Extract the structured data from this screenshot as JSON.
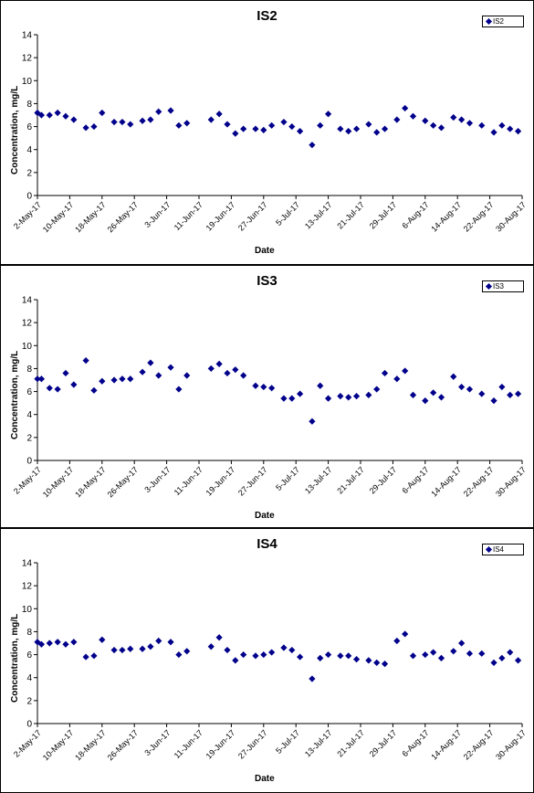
{
  "chart_data": [
    {
      "type": "scatter",
      "title": "IS2",
      "xlabel": "Date",
      "ylabel": "Concentration, mg/L",
      "ylim": [
        0,
        14
      ],
      "yticks": [
        0,
        2,
        4,
        6,
        8,
        10,
        12,
        14
      ],
      "xticks": [
        "2-May-17",
        "10-May-17",
        "18-May-17",
        "26-May-17",
        "3-Jun-17",
        "11-Jun-17",
        "19-Jun-17",
        "27-Jun-17",
        "5-Jul-17",
        "13-Jul-17",
        "21-Jul-17",
        "29-Jul-17",
        "6-Aug-17",
        "14-Aug-17",
        "22-Aug-17",
        "30-Aug-17"
      ],
      "legend": {
        "position": "top-right",
        "entries": [
          "IS2"
        ]
      },
      "grid": false,
      "series": [
        {
          "name": "IS2",
          "color": "#00008b",
          "points": [
            [
              "2-May-17",
              7.2
            ],
            [
              "3-May-17",
              7.0
            ],
            [
              "5-May-17",
              7.0
            ],
            [
              "7-May-17",
              7.2
            ],
            [
              "9-May-17",
              6.9
            ],
            [
              "11-May-17",
              6.6
            ],
            [
              "14-May-17",
              5.9
            ],
            [
              "16-May-17",
              6.0
            ],
            [
              "18-May-17",
              7.2
            ],
            [
              "21-May-17",
              6.4
            ],
            [
              "23-May-17",
              6.4
            ],
            [
              "25-May-17",
              6.2
            ],
            [
              "28-May-17",
              6.5
            ],
            [
              "30-May-17",
              6.6
            ],
            [
              "1-Jun-17",
              7.3
            ],
            [
              "4-Jun-17",
              7.4
            ],
            [
              "6-Jun-17",
              6.1
            ],
            [
              "8-Jun-17",
              6.3
            ],
            [
              "14-Jun-17",
              6.6
            ],
            [
              "16-Jun-17",
              7.1
            ],
            [
              "18-Jun-17",
              6.2
            ],
            [
              "20-Jun-17",
              5.4
            ],
            [
              "22-Jun-17",
              5.8
            ],
            [
              "25-Jun-17",
              5.8
            ],
            [
              "27-Jun-17",
              5.7
            ],
            [
              "29-Jun-17",
              6.1
            ],
            [
              "2-Jul-17",
              6.4
            ],
            [
              "4-Jul-17",
              6.0
            ],
            [
              "6-Jul-17",
              5.6
            ],
            [
              "9-Jul-17",
              4.4
            ],
            [
              "11-Jul-17",
              6.1
            ],
            [
              "13-Jul-17",
              7.1
            ],
            [
              "16-Jul-17",
              5.8
            ],
            [
              "18-Jul-17",
              5.6
            ],
            [
              "20-Jul-17",
              5.8
            ],
            [
              "23-Jul-17",
              6.2
            ],
            [
              "25-Jul-17",
              5.5
            ],
            [
              "27-Jul-17",
              5.8
            ],
            [
              "30-Jul-17",
              6.6
            ],
            [
              "1-Aug-17",
              7.6
            ],
            [
              "3-Aug-17",
              6.9
            ],
            [
              "6-Aug-17",
              6.5
            ],
            [
              "8-Aug-17",
              6.1
            ],
            [
              "10-Aug-17",
              5.9
            ],
            [
              "13-Aug-17",
              6.8
            ],
            [
              "15-Aug-17",
              6.6
            ],
            [
              "17-Aug-17",
              6.3
            ],
            [
              "20-Aug-17",
              6.1
            ],
            [
              "23-Aug-17",
              5.5
            ],
            [
              "25-Aug-17",
              6.1
            ],
            [
              "27-Aug-17",
              5.8
            ],
            [
              "29-Aug-17",
              5.6
            ]
          ]
        }
      ]
    },
    {
      "type": "scatter",
      "title": "IS3",
      "xlabel": "Date",
      "ylabel": "Concentration, mg/L",
      "ylim": [
        0,
        14
      ],
      "yticks": [
        0,
        2,
        4,
        6,
        8,
        10,
        12,
        14
      ],
      "xticks": [
        "2-May-17",
        "10-May-17",
        "18-May-17",
        "26-May-17",
        "3-Jun-17",
        "11-Jun-17",
        "19-Jun-17",
        "27-Jun-17",
        "5-Jul-17",
        "13-Jul-17",
        "21-Jul-17",
        "29-Jul-17",
        "6-Aug-17",
        "14-Aug-17",
        "22-Aug-17",
        "30-Aug-17"
      ],
      "legend": {
        "position": "top-right",
        "entries": [
          "IS3"
        ]
      },
      "grid": false,
      "series": [
        {
          "name": "IS3",
          "color": "#00008b",
          "points": [
            [
              "2-May-17",
              7.1
            ],
            [
              "3-May-17",
              7.1
            ],
            [
              "5-May-17",
              6.3
            ],
            [
              "7-May-17",
              6.2
            ],
            [
              "9-May-17",
              7.6
            ],
            [
              "11-May-17",
              6.6
            ],
            [
              "14-May-17",
              8.7
            ],
            [
              "16-May-17",
              6.1
            ],
            [
              "18-May-17",
              6.9
            ],
            [
              "21-May-17",
              7.0
            ],
            [
              "23-May-17",
              7.1
            ],
            [
              "25-May-17",
              7.1
            ],
            [
              "28-May-17",
              7.7
            ],
            [
              "30-May-17",
              8.5
            ],
            [
              "1-Jun-17",
              7.4
            ],
            [
              "4-Jun-17",
              8.1
            ],
            [
              "6-Jun-17",
              6.2
            ],
            [
              "8-Jun-17",
              7.4
            ],
            [
              "14-Jun-17",
              8.0
            ],
            [
              "16-Jun-17",
              8.4
            ],
            [
              "18-Jun-17",
              7.6
            ],
            [
              "20-Jun-17",
              7.9
            ],
            [
              "22-Jun-17",
              7.4
            ],
            [
              "25-Jun-17",
              6.5
            ],
            [
              "27-Jun-17",
              6.4
            ],
            [
              "29-Jun-17",
              6.3
            ],
            [
              "2-Jul-17",
              5.4
            ],
            [
              "4-Jul-17",
              5.4
            ],
            [
              "6-Jul-17",
              5.8
            ],
            [
              "9-Jul-17",
              3.4
            ],
            [
              "11-Jul-17",
              6.5
            ],
            [
              "13-Jul-17",
              5.4
            ],
            [
              "16-Jul-17",
              5.6
            ],
            [
              "18-Jul-17",
              5.5
            ],
            [
              "20-Jul-17",
              5.6
            ],
            [
              "23-Jul-17",
              5.7
            ],
            [
              "25-Jul-17",
              6.2
            ],
            [
              "27-Jul-17",
              7.6
            ],
            [
              "30-Jul-17",
              7.1
            ],
            [
              "1-Aug-17",
              7.8
            ],
            [
              "3-Aug-17",
              5.7
            ],
            [
              "6-Aug-17",
              5.2
            ],
            [
              "8-Aug-17",
              5.9
            ],
            [
              "10-Aug-17",
              5.5
            ],
            [
              "13-Aug-17",
              7.3
            ],
            [
              "15-Aug-17",
              6.4
            ],
            [
              "17-Aug-17",
              6.2
            ],
            [
              "20-Aug-17",
              5.8
            ],
            [
              "23-Aug-17",
              5.2
            ],
            [
              "25-Aug-17",
              6.4
            ],
            [
              "27-Aug-17",
              5.7
            ],
            [
              "29-Aug-17",
              5.8
            ]
          ]
        }
      ]
    },
    {
      "type": "scatter",
      "title": "IS4",
      "xlabel": "Date",
      "ylabel": "Concentration, mg/L",
      "ylim": [
        0,
        14
      ],
      "yticks": [
        0,
        2,
        4,
        6,
        8,
        10,
        12,
        14
      ],
      "xticks": [
        "2-May-17",
        "10-May-17",
        "18-May-17",
        "26-May-17",
        "3-Jun-17",
        "11-Jun-17",
        "19-Jun-17",
        "27-Jun-17",
        "5-Jul-17",
        "13-Jul-17",
        "21-Jul-17",
        "29-Jul-17",
        "6-Aug-17",
        "14-Aug-17",
        "22-Aug-17",
        "30-Aug-17"
      ],
      "legend": {
        "position": "top-right",
        "entries": [
          "IS4"
        ]
      },
      "grid": false,
      "series": [
        {
          "name": "IS4",
          "color": "#00008b",
          "points": [
            [
              "2-May-17",
              7.1
            ],
            [
              "3-May-17",
              6.9
            ],
            [
              "5-May-17",
              7.0
            ],
            [
              "7-May-17",
              7.1
            ],
            [
              "9-May-17",
              6.9
            ],
            [
              "11-May-17",
              7.1
            ],
            [
              "14-May-17",
              5.8
            ],
            [
              "16-May-17",
              5.9
            ],
            [
              "18-May-17",
              7.3
            ],
            [
              "21-May-17",
              6.4
            ],
            [
              "23-May-17",
              6.4
            ],
            [
              "25-May-17",
              6.5
            ],
            [
              "28-May-17",
              6.5
            ],
            [
              "30-May-17",
              6.7
            ],
            [
              "1-Jun-17",
              7.2
            ],
            [
              "4-Jun-17",
              7.1
            ],
            [
              "6-Jun-17",
              6.0
            ],
            [
              "8-Jun-17",
              6.3
            ],
            [
              "14-Jun-17",
              6.7
            ],
            [
              "16-Jun-17",
              7.5
            ],
            [
              "18-Jun-17",
              6.4
            ],
            [
              "20-Jun-17",
              5.5
            ],
            [
              "22-Jun-17",
              6.0
            ],
            [
              "25-Jun-17",
              5.9
            ],
            [
              "27-Jun-17",
              6.0
            ],
            [
              "29-Jun-17",
              6.2
            ],
            [
              "2-Jul-17",
              6.6
            ],
            [
              "4-Jul-17",
              6.4
            ],
            [
              "6-Jul-17",
              5.8
            ],
            [
              "9-Jul-17",
              3.9
            ],
            [
              "11-Jul-17",
              5.7
            ],
            [
              "13-Jul-17",
              6.0
            ],
            [
              "16-Jul-17",
              5.9
            ],
            [
              "18-Jul-17",
              5.9
            ],
            [
              "20-Jul-17",
              5.6
            ],
            [
              "23-Jul-17",
              5.5
            ],
            [
              "25-Jul-17",
              5.3
            ],
            [
              "27-Jul-17",
              5.2
            ],
            [
              "30-Jul-17",
              7.2
            ],
            [
              "1-Aug-17",
              7.8
            ],
            [
              "3-Aug-17",
              5.9
            ],
            [
              "6-Aug-17",
              6.0
            ],
            [
              "8-Aug-17",
              6.2
            ],
            [
              "10-Aug-17",
              5.7
            ],
            [
              "13-Aug-17",
              6.3
            ],
            [
              "15-Aug-17",
              7.0
            ],
            [
              "17-Aug-17",
              6.1
            ],
            [
              "20-Aug-17",
              6.1
            ],
            [
              "23-Aug-17",
              5.3
            ],
            [
              "25-Aug-17",
              5.7
            ],
            [
              "27-Aug-17",
              6.2
            ],
            [
              "29-Aug-17",
              5.5
            ]
          ]
        }
      ]
    }
  ]
}
